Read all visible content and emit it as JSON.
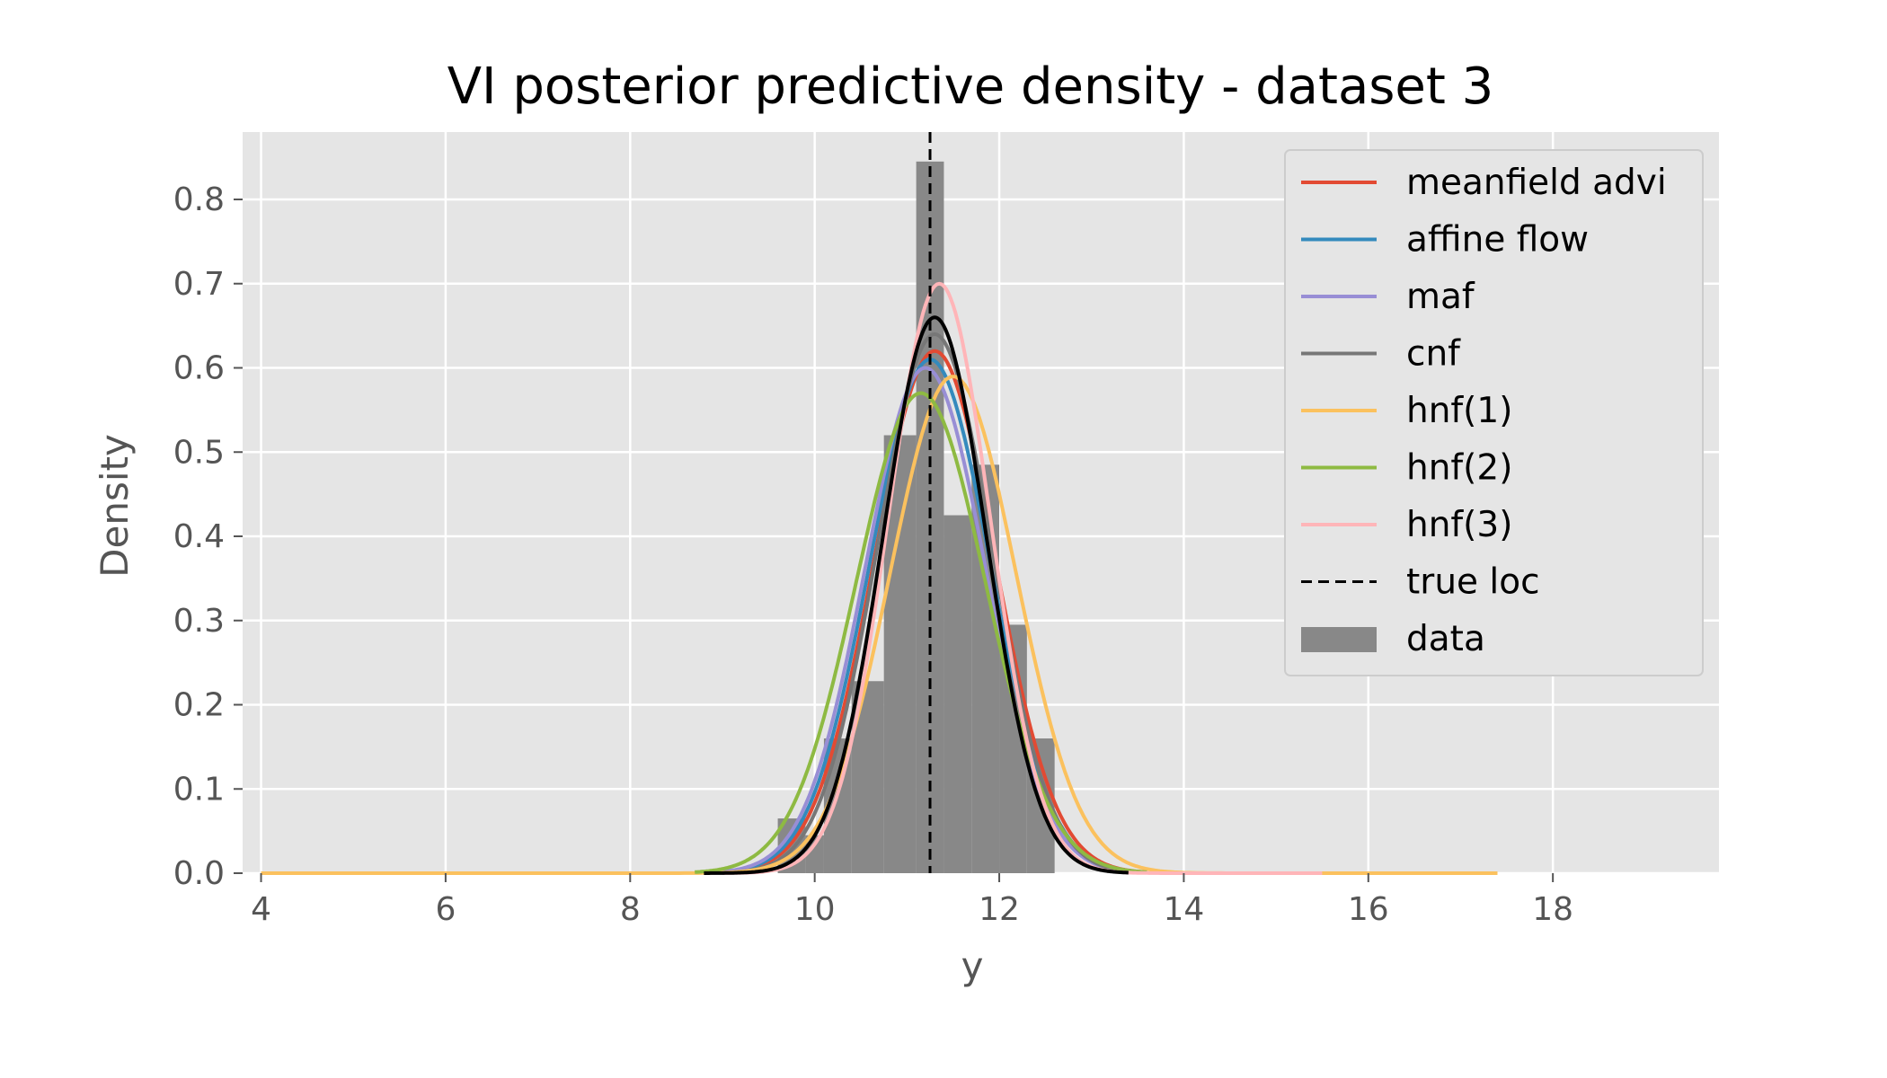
{
  "chart_data": {
    "type": "line",
    "title": "VI posterior predictive density - dataset 3",
    "xlabel": "y",
    "ylabel": "Density",
    "xlim": [
      3.8,
      19.8
    ],
    "ylim": [
      0,
      0.88
    ],
    "xticks": [
      4,
      6,
      8,
      10,
      12,
      14,
      16,
      18
    ],
    "yticks": [
      0.0,
      0.1,
      0.2,
      0.3,
      0.4,
      0.5,
      0.6,
      0.7,
      0.8
    ],
    "ytick_labels": [
      "0.0",
      "0.1",
      "0.2",
      "0.3",
      "0.4",
      "0.5",
      "0.6",
      "0.7",
      "0.8"
    ],
    "grid": true,
    "legend_position": "top-right",
    "true_loc": 11.25,
    "histogram": {
      "name": "data",
      "color": "#888888",
      "bins": [
        {
          "x0": 9.6,
          "x1": 9.9,
          "height": 0.065
        },
        {
          "x0": 9.9,
          "x1": 10.1,
          "height": 0.045
        },
        {
          "x0": 10.1,
          "x1": 10.4,
          "height": 0.16
        },
        {
          "x0": 10.4,
          "x1": 10.75,
          "height": 0.228
        },
        {
          "x0": 10.75,
          "x1": 11.1,
          "height": 0.52
        },
        {
          "x0": 11.1,
          "x1": 11.4,
          "height": 0.845
        },
        {
          "x0": 11.4,
          "x1": 11.7,
          "height": 0.425
        },
        {
          "x0": 11.7,
          "x1": 12.0,
          "height": 0.485
        },
        {
          "x0": 12.0,
          "x1": 12.3,
          "height": 0.295
        },
        {
          "x0": 12.3,
          "x1": 12.6,
          "height": 0.16
        }
      ]
    },
    "series": [
      {
        "name": "meanfield advi",
        "color": "#E24A33",
        "mu": 11.3,
        "sigma": 0.65,
        "peak": 0.62,
        "xrange": [
          9.0,
          13.6
        ]
      },
      {
        "name": "affine flow",
        "color": "#348ABD",
        "mu": 11.25,
        "sigma": 0.65,
        "peak": 0.61,
        "xrange": [
          9.0,
          13.6
        ]
      },
      {
        "name": "maf",
        "color": "#988ED5",
        "mu": 11.2,
        "sigma": 0.65,
        "peak": 0.6,
        "xrange": [
          9.0,
          13.6
        ]
      },
      {
        "name": "cnf",
        "color": "#777777",
        "mu": 11.3,
        "sigma": 0.62,
        "peak": 0.64,
        "xrange": [
          9.0,
          13.6
        ]
      },
      {
        "name": "hnf(1)",
        "color": "#FBC15E",
        "mu": 11.5,
        "sigma": 0.68,
        "peak": 0.59,
        "xrange": [
          4.0,
          17.4
        ]
      },
      {
        "name": "hnf(2)",
        "color": "#8EBA42",
        "mu": 11.15,
        "sigma": 0.7,
        "peak": 0.57,
        "xrange": [
          8.7,
          13.6
        ]
      },
      {
        "name": "hnf(3)",
        "color": "#FFB5B8",
        "mu": 11.35,
        "sigma": 0.55,
        "peak": 0.7,
        "xrange": [
          9.0,
          15.5
        ]
      },
      {
        "name": "",
        "color": "#000000",
        "mu": 11.3,
        "sigma": 0.56,
        "peak": 0.66,
        "xrange": [
          8.8,
          13.4
        ]
      }
    ],
    "legend": [
      {
        "label": "meanfield advi",
        "kind": "line",
        "color": "#E24A33"
      },
      {
        "label": "affine flow",
        "kind": "line",
        "color": "#348ABD"
      },
      {
        "label": "maf",
        "kind": "line",
        "color": "#988ED5"
      },
      {
        "label": "cnf",
        "kind": "line",
        "color": "#777777"
      },
      {
        "label": "hnf(1)",
        "kind": "line",
        "color": "#FBC15E"
      },
      {
        "label": "hnf(2)",
        "kind": "line",
        "color": "#8EBA42"
      },
      {
        "label": "hnf(3)",
        "kind": "line",
        "color": "#FFB5B8"
      },
      {
        "label": "true loc",
        "kind": "dashed",
        "color": "#000000"
      },
      {
        "label": "data",
        "kind": "patch",
        "color": "#888888"
      }
    ]
  }
}
